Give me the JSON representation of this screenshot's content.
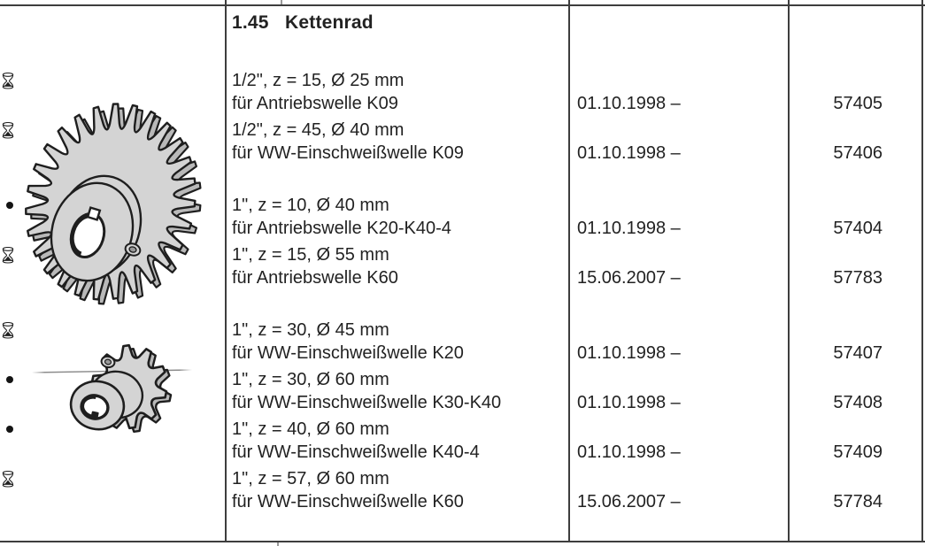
{
  "section": {
    "number": "1.45",
    "title": "Kettenrad"
  },
  "table": {
    "rows": [
      {
        "spec": "1/2\", z = 15, Ø 25 mm",
        "application": "für Antriebswelle K09",
        "valid_from": "01.10.1998 –",
        "part_no": "57405",
        "status_icon": "hourglass-icon"
      },
      {
        "spec": "1/2\", z = 45, Ø 40 mm",
        "application": "für WW-Einschweißwelle K09",
        "valid_from": "01.10.1998 –",
        "part_no": "57406",
        "status_icon": "hourglass-icon"
      },
      {
        "spec": "1\", z = 10, Ø 40 mm",
        "application": "für Antriebswelle K20-K40-4",
        "valid_from": "01.10.1998 –",
        "part_no": "57404",
        "status_icon": "dot-icon"
      },
      {
        "spec": "1\", z = 15, Ø 55 mm",
        "application": "für Antriebswelle K60",
        "valid_from": "15.06.2007 –",
        "part_no": "57783",
        "status_icon": "hourglass-icon"
      },
      {
        "spec": "1\", z = 30, Ø 45 mm",
        "application": "für WW-Einschweißwelle K20",
        "valid_from": "01.10.1998 –",
        "part_no": "57407",
        "status_icon": "hourglass-icon"
      },
      {
        "spec": "1\", z = 30, Ø 60 mm",
        "application": "für WW-Einschweißwelle K30-K40",
        "valid_from": "01.10.1998 –",
        "part_no": "57408",
        "status_icon": "dot-icon"
      },
      {
        "spec": "1\", z = 40, Ø 60 mm",
        "application": "für WW-Einschweißwelle K40-4",
        "valid_from": "01.10.1998 –",
        "part_no": "57409",
        "status_icon": "dot-icon"
      },
      {
        "spec": "1\", z = 57, Ø 60 mm",
        "application": "für WW-Einschweißwelle K60",
        "valid_from": "15.06.2007 –",
        "part_no": "57784",
        "status_icon": "hourglass-icon"
      }
    ]
  },
  "illustrations": {
    "large_sprocket": "großes Kettenrad mit Nabe",
    "small_sprocket": "kleines Kettenrad mit Nabe"
  },
  "colors": {
    "rule_line": "#3d3d3d",
    "text": "#222222",
    "sprocket_fill": "#d4d4d4",
    "sprocket_side": "#b9b9b9",
    "sprocket_outline": "#1e1e1e"
  }
}
